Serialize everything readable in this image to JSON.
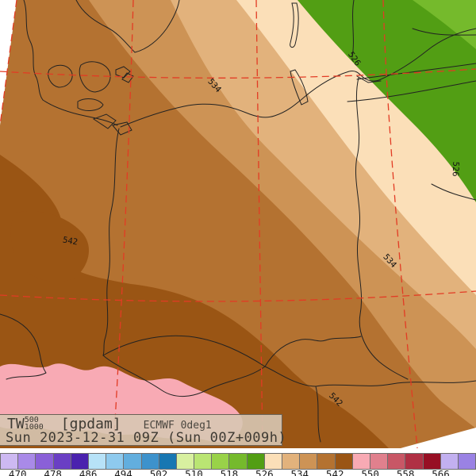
{
  "info_box": {
    "param": "TW",
    "level_sup": "500",
    "level_sub": "1000",
    "units": "[gpdam]",
    "model": "ECMWF 0deg1",
    "valid_time": "Sun 2023-12-31 09Z (Sun 00Z+009h)"
  },
  "map": {
    "contour_labels": [
      {
        "text": "534"
      },
      {
        "text": "526"
      },
      {
        "text": "526"
      },
      {
        "text": "542"
      },
      {
        "text": "534"
      },
      {
        "text": "542"
      }
    ],
    "band_colors": {
      "b518_522": "#75ba2c",
      "b522_526": "#529e14",
      "b526_530": "#fbdfb8",
      "b530_534": "#e2b27c",
      "b534_538": "#cd9355",
      "b538_542": "#b47231",
      "b542_546": "#9a5514",
      "b546_550": "#f8aab4",
      "map_edge": "#ffffff"
    },
    "graticule_color": "#e23b24",
    "border_color": "#222222"
  },
  "colorbar": {
    "colors": [
      "#cdb9f2",
      "#a98ae8",
      "#8a60d8",
      "#6a3fc4",
      "#4a22ae",
      "#b7e2f8",
      "#8ecaee",
      "#62aede",
      "#3d92cc",
      "#1877b2",
      "#d8f0a0",
      "#bae573",
      "#99d249",
      "#75ba2c",
      "#529e14",
      "#fbdfb8",
      "#e2b27c",
      "#cd9355",
      "#b47231",
      "#9a5514",
      "#f8aab4",
      "#e0808d",
      "#c85766",
      "#b03044",
      "#970f24",
      "#c2b0f0",
      "#9a82e4"
    ],
    "tick_labels": [
      "470",
      "478",
      "486",
      "494",
      "502",
      "510",
      "518",
      "526",
      "534",
      "542",
      "550",
      "558",
      "566"
    ]
  }
}
